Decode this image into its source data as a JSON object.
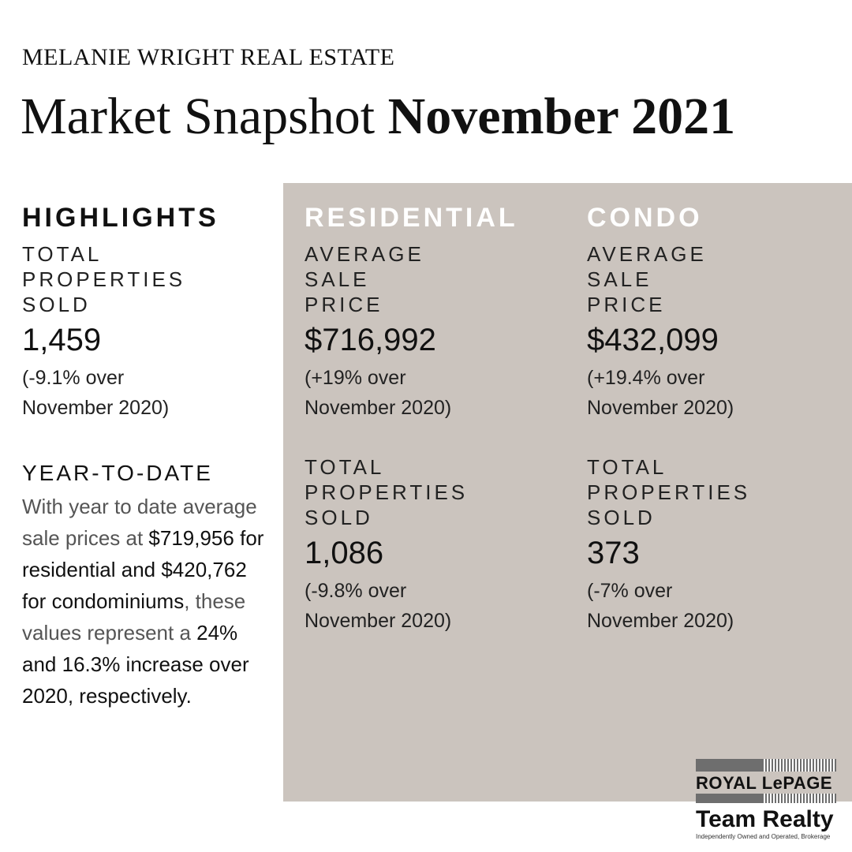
{
  "header": {
    "brand": "MELANIE WRIGHT REAL ESTATE",
    "title_regular": "Market Snapshot ",
    "title_bold": "November 2021"
  },
  "highlights": {
    "heading": "HIGHLIGHTS",
    "label_lines": [
      "TOTAL",
      "PROPERTIES",
      "SOLD"
    ],
    "value": "1,459",
    "change_lines": [
      "(-9.1% over",
      "November 2020)"
    ]
  },
  "ytd": {
    "heading": "YEAR-TO-DATE",
    "parts": [
      "With year to date average sale prices at ",
      "$719,956",
      " ",
      "for residential and $420,762 for condominiums",
      ", these values represent a ",
      "24% and 16.3% increase over 2020, respectively."
    ]
  },
  "residential": {
    "heading": "RESIDENTIAL",
    "price_label_lines": [
      "AVERAGE",
      "SALE",
      "PRICE"
    ],
    "price_value": "$716,992",
    "price_change_lines": [
      "(+19% over",
      "November 2020)"
    ],
    "sold_label_lines": [
      "TOTAL",
      "PROPERTIES",
      "SOLD"
    ],
    "sold_value": "1,086",
    "sold_change_lines": [
      "(-9.8% over",
      "November 2020)"
    ]
  },
  "condo": {
    "heading": "CONDO",
    "price_label_lines": [
      "AVERAGE",
      "SALE",
      "PRICE"
    ],
    "price_value": "$432,099",
    "price_change_lines": [
      "(+19.4% over",
      "November 2020)"
    ],
    "sold_label_lines": [
      "TOTAL",
      "PROPERTIES",
      "SOLD"
    ],
    "sold_value": "373",
    "sold_change_lines": [
      "(-7% over",
      "November 2020)"
    ]
  },
  "logo": {
    "name": "ROYAL LePAGE",
    "team": "Team Realty",
    "tagline": "Independently Owned and Operated, Brokerage"
  },
  "colors": {
    "panel": "#cbc4be",
    "text": "#111111",
    "panel_heading": "#ffffff"
  }
}
